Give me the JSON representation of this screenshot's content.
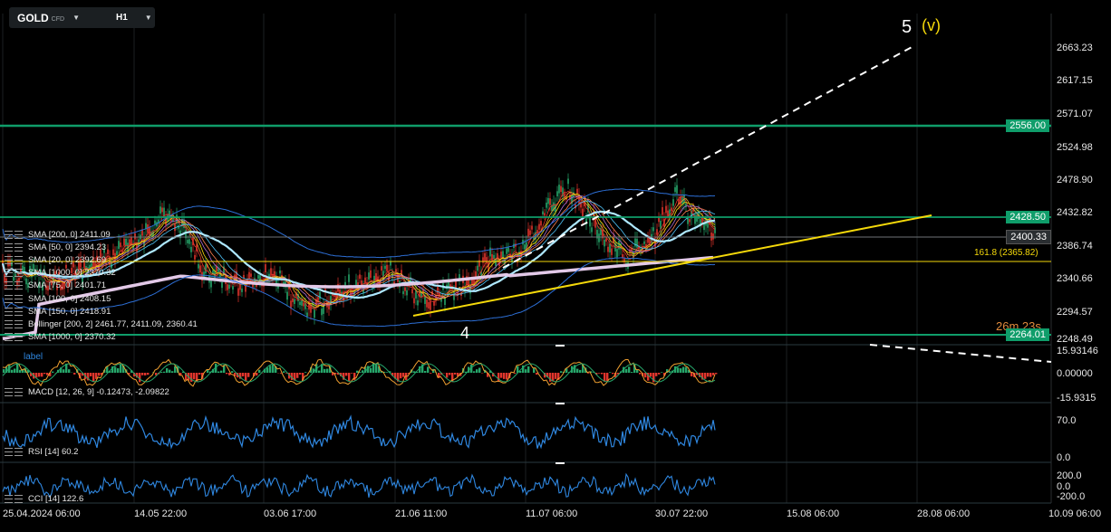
{
  "symbol": {
    "name": "GOLD",
    "type": "CFD",
    "timeframe": "H1"
  },
  "colors": {
    "background": "#000000",
    "green_level": "#0f9d6a",
    "yellow": "#f5d90a",
    "bollinger": "#2d6fd6",
    "sma_light": "#aee8ff",
    "sma_pink": "#e3c9e8",
    "macd_up": "#26a66a",
    "macd_down": "#e0352c",
    "rsi": "#2f87e0"
  },
  "indicators": [
    "SMA [200, 0] 2411.09",
    "SMA [50, 0] 2394.23",
    "SMA [20, 0] 2392.69",
    "SMA [1000, 0] 2370.32",
    "SMA [75, 0] 2401.71",
    "SMA [100, 0] 2408.15",
    "SMA [150, 0] 2418.91",
    "Bollinger [200, 2] 2461.77, 2411.09, 2360.41",
    "SMA [1000, 0] 2370.32"
  ],
  "price_axis": [
    "2663.23",
    "2617.15",
    "2571.07",
    "2524.98",
    "2478.90",
    "2432.82",
    "2386.74",
    "2340.66",
    "2294.57",
    "2248.49"
  ],
  "price_tags": {
    "level_high": "2556.00",
    "level_mid": "2428.50",
    "current": "2400.33",
    "level_low": "2264.01"
  },
  "fib_label": "161.8 (2365.82)",
  "countdown": "26m 23s",
  "wave_labels": {
    "five": "5",
    "five_v": "(v)",
    "four": "4"
  },
  "macd": {
    "title": "label",
    "legend": "MACD [12, 26, 9] -0.12473, -2.09822",
    "axis": [
      "15.93146",
      "0.00000",
      "-15.9315"
    ]
  },
  "rsi": {
    "legend": "RSI [14] 60.2",
    "axis": [
      "70.0",
      "0.0"
    ]
  },
  "cci": {
    "legend": "CCI [14] 122.6",
    "axis": [
      "200.0",
      "0.0",
      "-200.0"
    ]
  },
  "dates": [
    "25.04.2024  06:00",
    "14.05  22:00",
    "03.06  17:00",
    "21.06  11:00",
    "11.07  06:00",
    "30.07  22:00",
    "15.08  06:00",
    "28.08  06:00",
    "10.09  06:00"
  ]
}
